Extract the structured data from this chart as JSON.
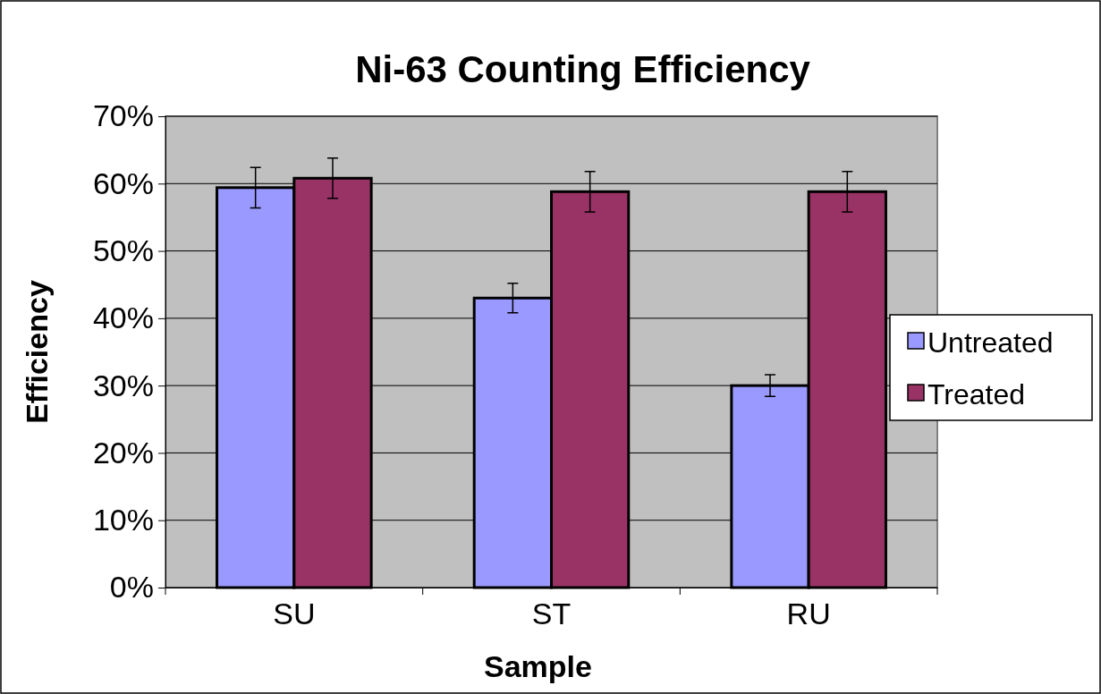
{
  "chart_data": {
    "type": "bar",
    "title": "Ni-63 Counting Efficiency",
    "xlabel": "Sample",
    "ylabel": "Efficiency",
    "categories": [
      "SU",
      "ST",
      "RU"
    ],
    "series": [
      {
        "name": "Untreated",
        "color": "#9999ff",
        "values": [
          59.4,
          43.0,
          30.0
        ],
        "errors": [
          3.0,
          2.2,
          1.6
        ]
      },
      {
        "name": "Treated",
        "color": "#993366",
        "values": [
          60.8,
          58.8,
          58.8
        ],
        "errors": [
          3.0,
          3.0,
          3.0
        ]
      }
    ],
    "ylim": [
      0,
      70
    ],
    "yticks": [
      {
        "value": 0,
        "label": "0%"
      },
      {
        "value": 10,
        "label": "10%"
      },
      {
        "value": 20,
        "label": "20%"
      },
      {
        "value": 30,
        "label": "30%"
      },
      {
        "value": 40,
        "label": "40%"
      },
      {
        "value": 50,
        "label": "50%"
      },
      {
        "value": 60,
        "label": "60%"
      },
      {
        "value": 70,
        "label": "70%"
      }
    ],
    "grid": "y",
    "legend": "right"
  }
}
